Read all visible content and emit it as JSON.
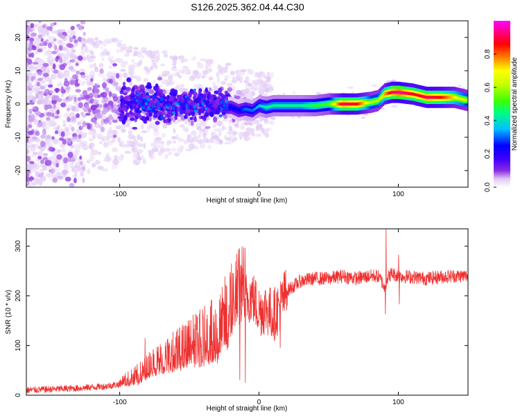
{
  "title": "S126.2025.362.04.44.C30",
  "colors": {
    "snr_line": "#ee3030",
    "axis": "#000000",
    "background": "#ffffff"
  },
  "chart_data": [
    {
      "type": "heatmap",
      "name": "spectrogram",
      "xlabel": "Height of straight line (km)",
      "ylabel": "Frequency (Hz)",
      "xlim": [
        -167,
        150
      ],
      "ylim": [
        -25,
        25
      ],
      "xticks": [
        -100,
        0,
        100
      ],
      "yticks": [
        -20,
        -10,
        0,
        10,
        20
      ],
      "colorbar": {
        "label": "Normalized spectral amplitude",
        "range": [
          0,
          1
        ],
        "ticks": [
          0.0,
          0.2,
          0.4,
          0.6,
          0.8
        ],
        "tick_labels": [
          "0.0",
          "0.2",
          "0.4",
          "0.6",
          "0.8"
        ],
        "colormap": [
          "#ffffff",
          "#e0c8f5",
          "#8a2be2",
          "#3f00ff",
          "#0000ff",
          "#00c0ff",
          "#00ff80",
          "#40ff00",
          "#c8ff00",
          "#ffff00",
          "#ff8000",
          "#ff0000",
          "#ff0080",
          "#ff00ff"
        ]
      },
      "carrier_ridge": {
        "height_km": [
          -20,
          -15,
          -10,
          -5,
          0,
          5,
          10,
          20,
          30,
          40,
          50,
          60,
          70,
          80,
          85,
          90,
          95,
          100,
          110,
          120,
          130,
          140,
          150
        ],
        "frequency_hz": [
          -1,
          -2,
          -1.5,
          -2,
          -0.5,
          -1,
          -0.5,
          -0.5,
          -0.5,
          -0.5,
          0,
          0,
          0,
          0.5,
          1,
          3,
          3.5,
          3.5,
          3,
          2,
          2,
          2,
          1
        ],
        "amplitude": [
          0.3,
          0.3,
          0.35,
          0.35,
          0.4,
          0.45,
          0.45,
          0.45,
          0.45,
          0.5,
          0.55,
          0.9,
          0.85,
          0.6,
          0.6,
          0.75,
          0.9,
          0.95,
          0.85,
          0.9,
          0.85,
          0.7,
          0.6
        ]
      },
      "scatter_region": {
        "height_km": [
          -167,
          -20
        ],
        "frequency_hz": [
          -25,
          25
        ],
        "amplitude_range": [
          0.05,
          0.3
        ]
      }
    },
    {
      "type": "line",
      "name": "snr",
      "xlabel": "Height of straight line (km)",
      "ylabel": "SNR (10 * v/v)",
      "xlim": [
        -167,
        150
      ],
      "ylim": [
        0,
        335
      ],
      "xticks": [
        -100,
        0,
        100
      ],
      "yticks": [
        0,
        100,
        200,
        300
      ],
      "series": [
        {
          "name": "SNR",
          "x": [
            -167,
            -150,
            -130,
            -110,
            -100,
            -90,
            -85,
            -80,
            -75,
            -70,
            -60,
            -50,
            -40,
            -35,
            -30,
            -25,
            -22,
            -20,
            -18,
            -15,
            -12,
            -10,
            -5,
            0,
            5,
            10,
            15,
            20,
            25,
            30,
            40,
            50,
            60,
            70,
            80,
            85,
            88,
            90,
            92,
            95,
            100,
            110,
            120,
            130,
            140,
            150
          ],
          "y": [
            10,
            12,
            14,
            18,
            22,
            28,
            35,
            45,
            55,
            60,
            70,
            80,
            90,
            95,
            100,
            120,
            140,
            150,
            170,
            180,
            190,
            195,
            200,
            170,
            175,
            160,
            180,
            210,
            220,
            230,
            235,
            235,
            240,
            235,
            240,
            240,
            230,
            215,
            235,
            245,
            240,
            238,
            235,
            238,
            240,
            240
          ],
          "spikes": [
            {
              "x": 91,
              "y": 335
            },
            {
              "x": 90.5,
              "y": 163
            },
            {
              "x": 100,
              "y": 283
            },
            {
              "x": 100.5,
              "y": 183
            },
            {
              "x": -17,
              "y": 270
            },
            {
              "x": -20,
              "y": 265
            },
            {
              "x": -13,
              "y": 260
            },
            {
              "x": -10,
              "y": 25
            },
            {
              "x": -14,
              "y": 30
            },
            {
              "x": 15,
              "y": 95
            },
            {
              "x": 20,
              "y": 180
            },
            {
              "x": -82,
              "y": 115
            }
          ]
        }
      ]
    }
  ]
}
